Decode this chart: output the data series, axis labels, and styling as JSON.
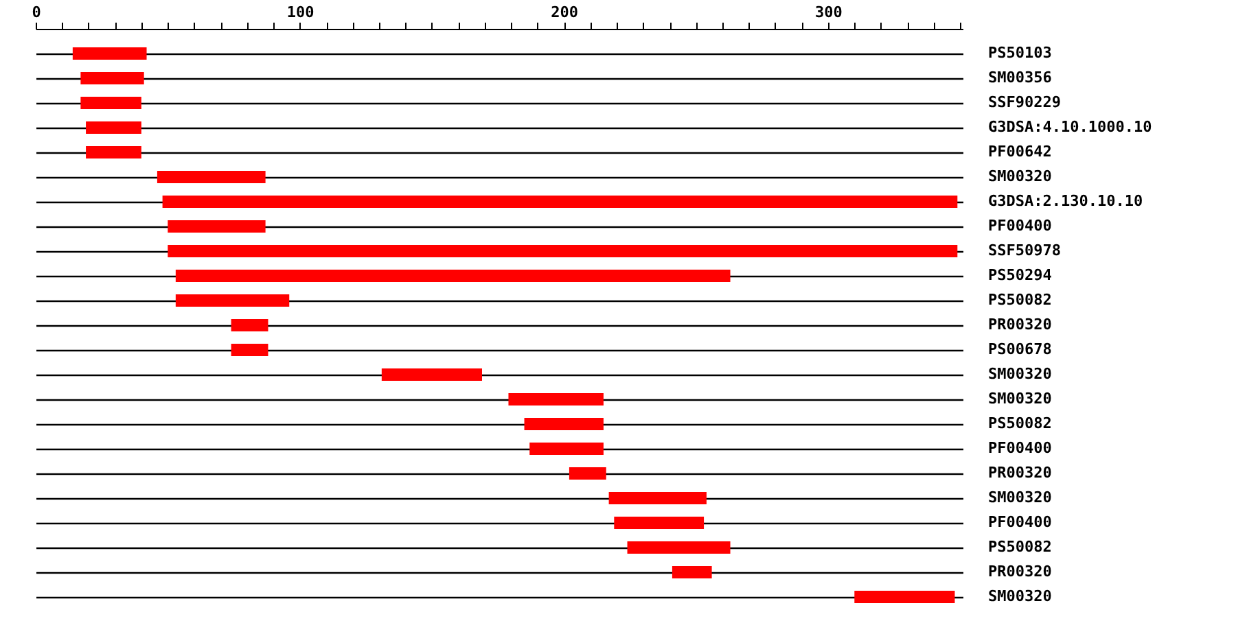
{
  "chart_data": {
    "type": "bar",
    "orientation": "horizontal",
    "categories": [
      "PS50103",
      "SM00356",
      "SSF90229",
      "G3DSA:4.10.1000.10",
      "PF00642",
      "SM00320",
      "G3DSA:2.130.10.10",
      "PF00400",
      "SSF50978",
      "PS50294",
      "PS50082",
      "PR00320",
      "PS00678",
      "SM00320",
      "SM00320",
      "PS50082",
      "PF00400",
      "PR00320",
      "SM00320",
      "PF00400",
      "PS50082",
      "PR00320",
      "SM00320"
    ],
    "base": [
      14,
      17,
      17,
      19,
      19,
      46,
      48,
      50,
      50,
      53,
      53,
      74,
      74,
      131,
      179,
      185,
      187,
      202,
      217,
      219,
      224,
      241,
      310
    ],
    "values": [
      28,
      24,
      23,
      21,
      21,
      41,
      301,
      37,
      299,
      210,
      43,
      14,
      14,
      38,
      36,
      30,
      28,
      14,
      37,
      34,
      39,
      15,
      38
    ],
    "color": "#ff0000",
    "xlim": [
      0,
      351
    ],
    "xticks": [
      0,
      {
        "value": 10,
        "label": null
      },
      {
        "value": 20,
        "label": null
      },
      {
        "value": 30,
        "label": null
      },
      {
        "value": 40,
        "label": null
      },
      {
        "value": 50,
        "label": null
      },
      {
        "value": 60,
        "label": null
      },
      {
        "value": 70,
        "label": null
      },
      {
        "value": 80,
        "label": null
      },
      {
        "value": 90,
        "label": null
      },
      100,
      {
        "value": 110,
        "label": null
      },
      {
        "value": 120,
        "label": null
      },
      {
        "value": 130,
        "label": null
      },
      {
        "value": 140,
        "label": null
      },
      {
        "value": 150,
        "label": null
      },
      {
        "value": 160,
        "label": null
      },
      {
        "value": 170,
        "label": null
      },
      {
        "value": 180,
        "label": null
      },
      {
        "value": 190,
        "label": null
      },
      200,
      {
        "value": 210,
        "label": null
      },
      {
        "value": 220,
        "label": null
      },
      {
        "value": 230,
        "label": null
      },
      {
        "value": 240,
        "label": null
      },
      {
        "value": 250,
        "label": null
      },
      {
        "value": 260,
        "label": null
      },
      {
        "value": 270,
        "label": null
      },
      {
        "value": 280,
        "label": null
      },
      {
        "value": 290,
        "label": null
      },
      300,
      {
        "value": 310,
        "label": null
      },
      {
        "value": 320,
        "label": null
      },
      {
        "value": 330,
        "label": null
      },
      {
        "value": 340,
        "label": null
      },
      {
        "value": 350,
        "label": null
      }
    ],
    "grid": "y"
  }
}
